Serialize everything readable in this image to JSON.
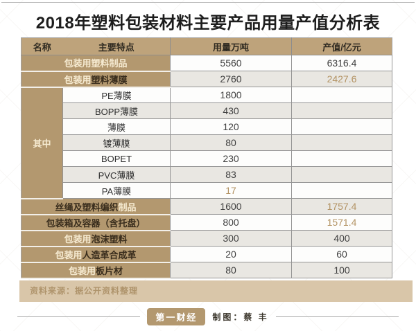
{
  "title": "2018年塑料包装材料主要产品用量产值分析表",
  "table": {
    "headers": [
      "名称",
      "主要特点",
      "用量万吨",
      "产值/亿元"
    ],
    "group_label": "其中",
    "rows": [
      {
        "light": "包装用塑料制品",
        "dark": "",
        "usage": "5560",
        "value": "6316.4"
      },
      {
        "light": "包装用",
        "dark": "塑料薄膜",
        "usage": "2760",
        "value": "2427.6"
      },
      {
        "name": "PE薄膜",
        "usage": "1800",
        "value": ""
      },
      {
        "name": "BOPP薄膜",
        "usage": "430",
        "value": ""
      },
      {
        "name": "薄膜",
        "usage": "120",
        "value": ""
      },
      {
        "name": "镀薄膜",
        "usage": "80",
        "value": ""
      },
      {
        "name": "BOPET",
        "usage": "230",
        "value": ""
      },
      {
        "name": "PVC薄膜",
        "usage": "83",
        "value": ""
      },
      {
        "name": "PA薄膜",
        "usage": "17",
        "value": ""
      },
      {
        "dark": "丝绳及塑料编织",
        "light": "制品",
        "usage": "1600",
        "value": "1757.4"
      },
      {
        "dark": "包装箱及容器（含托盘）",
        "light": "",
        "usage": "800",
        "value": "1571.4"
      },
      {
        "light": "包装用",
        "dark": "泡沫塑料",
        "usage": "300",
        "value": "400"
      },
      {
        "light": "包装用",
        "dark": "人造革合成革",
        "usage": "20",
        "value": "60"
      },
      {
        "light": "包装用",
        "dark": "板片材",
        "usage": "80",
        "value": "100"
      }
    ]
  },
  "source_note": "资料来源：据公开资料整理",
  "footer": {
    "logo": "第一财经",
    "credit": "制图：蔡 丰"
  },
  "colors": {
    "tan_header": "#bea37b",
    "tan_cell": "#b3986f",
    "gold_text": "#b39364",
    "alt_row_bg": "#e9e7e2",
    "source_bar_bg": "#d9c6a9",
    "cream_text": "#f6ebd2"
  },
  "chart_data": {
    "type": "table",
    "title": "2018年塑料包装材料主要产品用量产值分析表",
    "columns": [
      "名称",
      "用量万吨",
      "产值/亿元"
    ],
    "rows": [
      [
        "包装用塑料制品",
        5560,
        6316.4
      ],
      [
        "包装用塑料薄膜",
        2760,
        2427.6
      ],
      [
        "其中：PE薄膜",
        1800,
        null
      ],
      [
        "其中：BOPP薄膜",
        430,
        null
      ],
      [
        "其中：薄膜",
        120,
        null
      ],
      [
        "其中：镀薄膜",
        80,
        null
      ],
      [
        "其中：BOPET",
        230,
        null
      ],
      [
        "其中：PVC薄膜",
        83,
        null
      ],
      [
        "其中：PA薄膜",
        17,
        null
      ],
      [
        "丝绳及塑料编织制品",
        1600,
        1757.4
      ],
      [
        "包装箱及容器（含托盘）",
        800,
        1571.4
      ],
      [
        "包装用泡沫塑料",
        300,
        400
      ],
      [
        "包装用人造革合成革",
        20,
        60
      ],
      [
        "包装用板片材",
        80,
        100
      ]
    ],
    "source": "资料来源：据公开资料整理",
    "credit": "制图：蔡丰"
  }
}
